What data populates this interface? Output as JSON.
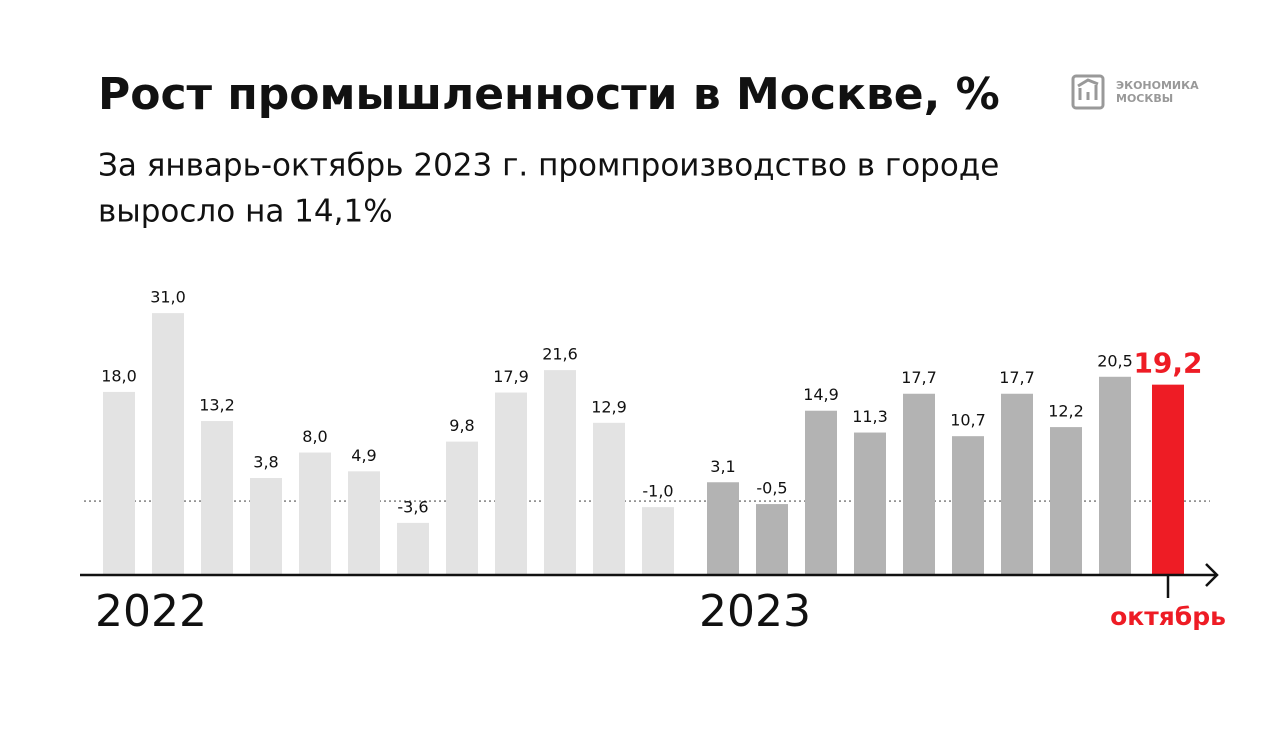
{
  "logo": [
    "ЭКОНОМИКА",
    "МОСКВЫ"
  ],
  "chart_data": {
    "type": "bar",
    "title": "Рост промышленности в Москве, %",
    "subtitle": [
      "За январь-октябрь 2023 г. промпроизводство в городе",
      "выросло на 14,1%"
    ],
    "series": [
      {
        "name": "2022",
        "color": "#e3e3e3",
        "values": [
          18.0,
          31.0,
          13.2,
          3.8,
          8.0,
          4.9,
          -3.6,
          9.8,
          17.9,
          21.6,
          12.9,
          -1.0
        ],
        "value_labels": [
          "18,0",
          "31,0",
          "13,2",
          "3,8",
          "8,0",
          "4,9",
          "-3,6",
          "9,8",
          "17,9",
          "21,6",
          "12,9",
          "-1,0"
        ]
      },
      {
        "name": "2023",
        "color": "#b3b3b3",
        "values": [
          3.1,
          -0.5,
          14.9,
          11.3,
          17.7,
          10.7,
          17.7,
          12.2,
          20.5,
          19.2
        ],
        "value_labels": [
          "3,1",
          "-0,5",
          "14,9",
          "11,3",
          "17,7",
          "10,7",
          "17,7",
          "12,2",
          "20,5",
          "19,2"
        ]
      }
    ],
    "highlight_last": true,
    "highlight_color": "#ee1c25",
    "highlight_label": "октябрь",
    "zero_line": true,
    "ylim": [
      -12.2,
      33
    ]
  }
}
